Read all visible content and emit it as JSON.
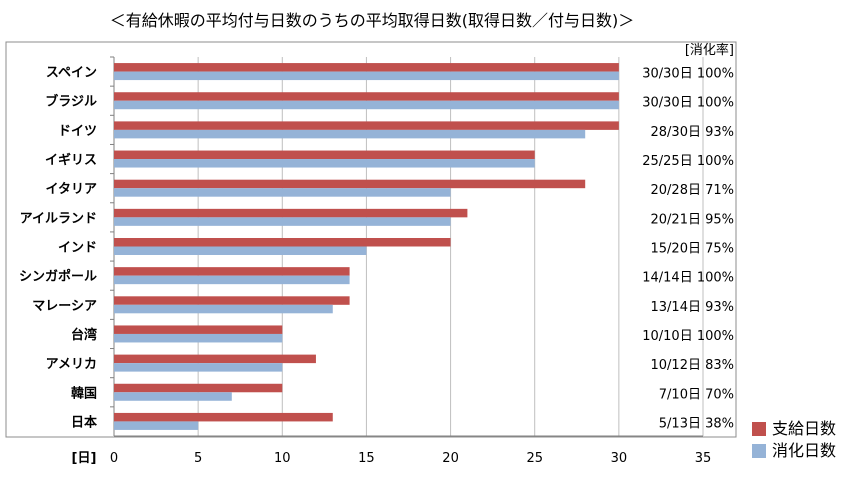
{
  "chart_data": {
    "type": "bar",
    "orientation": "horizontal",
    "title": "＜有給休暇の平均付与日数のうちの平均取得日数(取得日数／付与日数)＞",
    "categories": [
      "スペイン",
      "ブラジル",
      "ドイツ",
      "イギリス",
      "イタリア",
      "アイルランド",
      "インド",
      "シンガポール",
      "マレーシア",
      "台湾",
      "アメリカ",
      "韓国",
      "日本"
    ],
    "series": [
      {
        "name": "支給日数",
        "color": "#c0504d",
        "values": [
          30,
          30,
          30,
          25,
          28,
          21,
          20,
          14,
          14,
          10,
          12,
          10,
          13
        ]
      },
      {
        "name": "消化日数",
        "color": "#95b3d7",
        "values": [
          30,
          30,
          28,
          25,
          20,
          20,
          15,
          14,
          13,
          10,
          10,
          7,
          5
        ]
      }
    ],
    "annotations": [
      "30/30日 100%",
      "30/30日 100%",
      "28/30日  93%",
      "25/25日 100%",
      "20/28日  71%",
      "20/21日  95%",
      "15/20日  75%",
      "14/14日 100%",
      "13/14日  93%",
      "10/10日 100%",
      "10/12日  83%",
      "7/10日  70%",
      "5/13日  38%"
    ],
    "annotation_header": "[消化率]",
    "xlabel": "[日]",
    "xlim": [
      0,
      35
    ],
    "xticks": [
      0,
      5,
      10,
      15,
      20,
      25,
      30,
      35
    ],
    "grid": true,
    "legend_position": "bottom-right"
  }
}
